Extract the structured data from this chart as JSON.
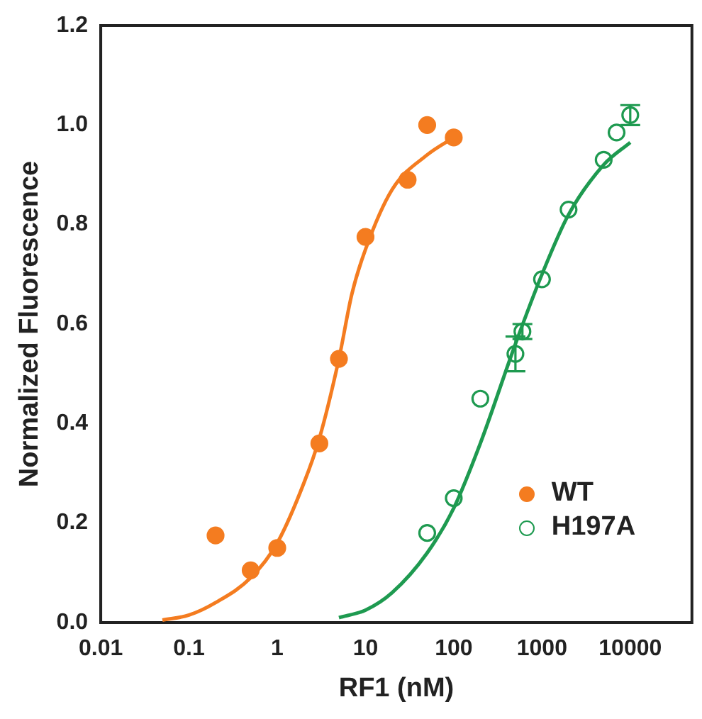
{
  "chart_data": {
    "type": "scatter",
    "xlabel": "RF1 (nM)",
    "ylabel": "Normalized Fluorescence",
    "log": "x",
    "grid": false,
    "legend": "bottom right",
    "marker": "circle",
    "xlim": [
      0.01,
      50000
    ],
    "xticks": [
      0.01,
      0.1,
      1,
      10,
      100,
      1000,
      10000
    ],
    "ylim": [
      0,
      1.2
    ],
    "yticks": [
      {
        "value": 0,
        "label": "0.0"
      },
      {
        "value": 0.2,
        "label": "0.2"
      },
      {
        "value": 0.4,
        "label": "0.4"
      },
      {
        "value": 0.6,
        "label": "0.6"
      },
      {
        "value": 0.8,
        "label": "0.8"
      },
      {
        "value": 1,
        "label": "1.0"
      },
      {
        "value": 1.2,
        "label": "1.2"
      }
    ],
    "series": [
      {
        "name": "WT",
        "color": "#f47c20",
        "x": [
          0.2,
          0.5,
          1,
          3,
          5,
          10,
          30,
          50,
          100
        ],
        "values": [
          0.175,
          0.105,
          0.15,
          0.36,
          0.53,
          0.775,
          0.89,
          1.0,
          0.975
        ]
      },
      {
        "name": "H197A",
        "color": "#1e9a50",
        "x": [
          50,
          100,
          200,
          500,
          600,
          1000,
          2000,
          5000,
          7000,
          10000
        ],
        "values": [
          0.18,
          0.25,
          0.45,
          0.54,
          0.585,
          0.69,
          0.83,
          0.93,
          0.985,
          1.02
        ],
        "errors": [
          null,
          null,
          null,
          0.035,
          0.015,
          null,
          null,
          null,
          null,
          0.02
        ]
      },
      {
        "color": "#f47c20",
        "type": "line",
        "marker": "none",
        "x": [
          0.05,
          0.1,
          0.2,
          0.5,
          1,
          2,
          3,
          5,
          7,
          10,
          20,
          50,
          100
        ],
        "values": [
          0.005,
          0.015,
          0.04,
          0.09,
          0.16,
          0.28,
          0.37,
          0.53,
          0.66,
          0.75,
          0.87,
          0.94,
          0.975
        ]
      },
      {
        "color": "#1e9a50",
        "type": "line",
        "marker": "none",
        "x": [
          5,
          10,
          20,
          50,
          100,
          200,
          500,
          1000,
          2000,
          5000,
          10000
        ],
        "values": [
          0.01,
          0.025,
          0.06,
          0.14,
          0.23,
          0.36,
          0.56,
          0.7,
          0.82,
          0.92,
          0.965
        ]
      }
    ]
  }
}
